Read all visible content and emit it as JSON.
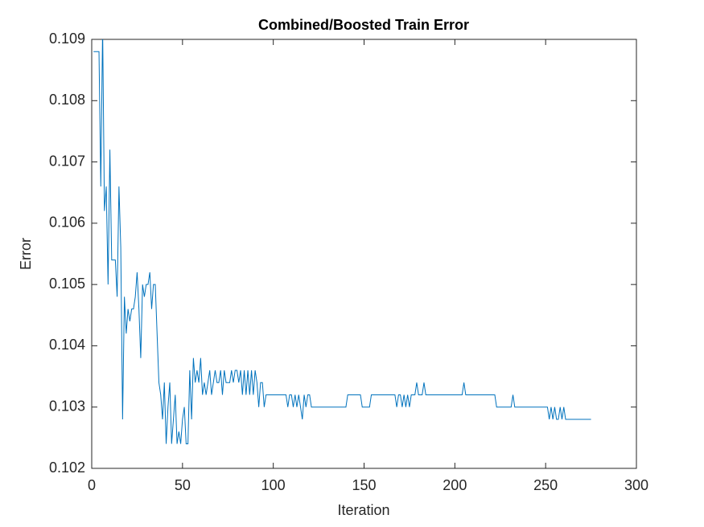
{
  "chart_data": {
    "type": "line",
    "title": "Combined/Boosted Train Error",
    "xlabel": "Iteration",
    "ylabel": "Error",
    "color": "#0072bd",
    "xlim": [
      0,
      300
    ],
    "xticks": [
      0,
      50,
      100,
      150,
      200,
      250,
      300
    ],
    "ylim": [
      0.102,
      0.109
    ],
    "yticks": [
      0.102,
      0.103,
      0.104,
      0.105,
      0.106,
      0.107,
      0.108,
      0.109
    ],
    "x": [
      1,
      2,
      3,
      4,
      5,
      6,
      7,
      8,
      9,
      10,
      11,
      12,
      13,
      14,
      15,
      16,
      17,
      18,
      19,
      20,
      21,
      22,
      23,
      24,
      25,
      26,
      27,
      28,
      29,
      30,
      31,
      32,
      33,
      34,
      35,
      36,
      37,
      38,
      39,
      40,
      41,
      42,
      43,
      44,
      45,
      46,
      47,
      48,
      49,
      50,
      51,
      52,
      53,
      54,
      55,
      56,
      57,
      58,
      59,
      60,
      61,
      62,
      63,
      64,
      65,
      66,
      67,
      68,
      69,
      70,
      71,
      72,
      73,
      74,
      75,
      76,
      77,
      78,
      79,
      80,
      81,
      82,
      83,
      84,
      85,
      86,
      87,
      88,
      89,
      90,
      91,
      92,
      93,
      94,
      95,
      96,
      97,
      98,
      99,
      100,
      101,
      102,
      103,
      104,
      105,
      106,
      107,
      108,
      109,
      110,
      111,
      112,
      113,
      114,
      115,
      116,
      117,
      118,
      119,
      120,
      121,
      122,
      123,
      124,
      125,
      126,
      127,
      128,
      129,
      130,
      131,
      132,
      133,
      134,
      135,
      136,
      137,
      138,
      139,
      140,
      141,
      142,
      143,
      144,
      145,
      146,
      147,
      148,
      149,
      150,
      151,
      152,
      153,
      154,
      155,
      156,
      157,
      158,
      159,
      160,
      161,
      162,
      163,
      164,
      165,
      166,
      167,
      168,
      169,
      170,
      171,
      172,
      173,
      174,
      175,
      176,
      177,
      178,
      179,
      180,
      181,
      182,
      183,
      184,
      185,
      186,
      187,
      188,
      189,
      190,
      191,
      192,
      193,
      194,
      195,
      196,
      197,
      198,
      199,
      200,
      201,
      202,
      203,
      204,
      205,
      206,
      207,
      208,
      209,
      210,
      211,
      212,
      213,
      214,
      215,
      216,
      217,
      218,
      219,
      220,
      221,
      222,
      223,
      224,
      225,
      226,
      227,
      228,
      229,
      230,
      231,
      232,
      233,
      234,
      235,
      236,
      237,
      238,
      239,
      240,
      241,
      242,
      243,
      244,
      245,
      246,
      247,
      248,
      249,
      250,
      251,
      252,
      253,
      254,
      255,
      256,
      257,
      258,
      259,
      260,
      261,
      262,
      263,
      264,
      265,
      266,
      267,
      268,
      269,
      270,
      271,
      272,
      273,
      274,
      275
    ],
    "values": [
      0.1088,
      0.1088,
      0.1088,
      0.1088,
      0.1066,
      0.1092,
      0.1062,
      0.1066,
      0.105,
      0.1072,
      0.1054,
      0.1054,
      0.1054,
      0.1048,
      0.1066,
      0.1056,
      0.1028,
      0.1048,
      0.1042,
      0.1046,
      0.1044,
      0.1046,
      0.1046,
      0.1048,
      0.1052,
      0.1046,
      0.1038,
      0.105,
      0.1048,
      0.105,
      0.105,
      0.1052,
      0.1046,
      0.105,
      0.105,
      0.1042,
      0.1034,
      0.1032,
      0.1028,
      0.1034,
      0.1024,
      0.103,
      0.1034,
      0.1024,
      0.1028,
      0.1032,
      0.1024,
      0.1026,
      0.1024,
      0.1028,
      0.103,
      0.1024,
      0.1024,
      0.1036,
      0.1028,
      0.1038,
      0.1034,
      0.1036,
      0.1034,
      0.1038,
      0.1032,
      0.1034,
      0.1032,
      0.1034,
      0.1036,
      0.1032,
      0.1034,
      0.1036,
      0.1034,
      0.1034,
      0.1036,
      0.1032,
      0.1036,
      0.1034,
      0.1034,
      0.1034,
      0.1036,
      0.1034,
      0.1036,
      0.1036,
      0.1034,
      0.1036,
      0.1032,
      0.1036,
      0.1032,
      0.1036,
      0.1032,
      0.1036,
      0.1032,
      0.1036,
      0.1034,
      0.103,
      0.1034,
      0.1034,
      0.103,
      0.1032,
      0.1032,
      0.1032,
      0.1032,
      0.1032,
      0.1032,
      0.1032,
      0.1032,
      0.1032,
      0.1032,
      0.1032,
      0.1032,
      0.103,
      0.1032,
      0.1032,
      0.103,
      0.1032,
      0.103,
      0.1032,
      0.103,
      0.1028,
      0.1032,
      0.103,
      0.1032,
      0.1032,
      0.103,
      0.103,
      0.103,
      0.103,
      0.103,
      0.103,
      0.103,
      0.103,
      0.103,
      0.103,
      0.103,
      0.103,
      0.103,
      0.103,
      0.103,
      0.103,
      0.103,
      0.103,
      0.103,
      0.103,
      0.1032,
      0.1032,
      0.1032,
      0.1032,
      0.1032,
      0.1032,
      0.1032,
      0.1032,
      0.103,
      0.103,
      0.103,
      0.103,
      0.103,
      0.1032,
      0.1032,
      0.1032,
      0.1032,
      0.1032,
      0.1032,
      0.1032,
      0.1032,
      0.1032,
      0.1032,
      0.1032,
      0.1032,
      0.1032,
      0.1032,
      0.103,
      0.1032,
      0.1032,
      0.103,
      0.1032,
      0.103,
      0.1032,
      0.103,
      0.1032,
      0.1032,
      0.1032,
      0.1034,
      0.1032,
      0.1032,
      0.1032,
      0.1034,
      0.1032,
      0.1032,
      0.1032,
      0.1032,
      0.1032,
      0.1032,
      0.1032,
      0.1032,
      0.1032,
      0.1032,
      0.1032,
      0.1032,
      0.1032,
      0.1032,
      0.1032,
      0.1032,
      0.1032,
      0.1032,
      0.1032,
      0.1032,
      0.1032,
      0.1034,
      0.1032,
      0.1032,
      0.1032,
      0.1032,
      0.1032,
      0.1032,
      0.1032,
      0.1032,
      0.1032,
      0.1032,
      0.1032,
      0.1032,
      0.1032,
      0.1032,
      0.1032,
      0.1032,
      0.1032,
      0.103,
      0.103,
      0.103,
      0.103,
      0.103,
      0.103,
      0.103,
      0.103,
      0.103,
      0.1032,
      0.103,
      0.103,
      0.103,
      0.103,
      0.103,
      0.103,
      0.103,
      0.103,
      0.103,
      0.103,
      0.103,
      0.103,
      0.103,
      0.103,
      0.103,
      0.103,
      0.103,
      0.103,
      0.103,
      0.1028,
      0.103,
      0.1028,
      0.103,
      0.1028,
      0.1028,
      0.103,
      0.1028,
      0.103,
      0.1028,
      0.1028,
      0.1028,
      0.1028,
      0.1028,
      0.1028,
      0.1028,
      0.1028,
      0.1028,
      0.1028,
      0.1028,
      0.1028,
      0.1028,
      0.1028,
      0.1028
    ]
  }
}
